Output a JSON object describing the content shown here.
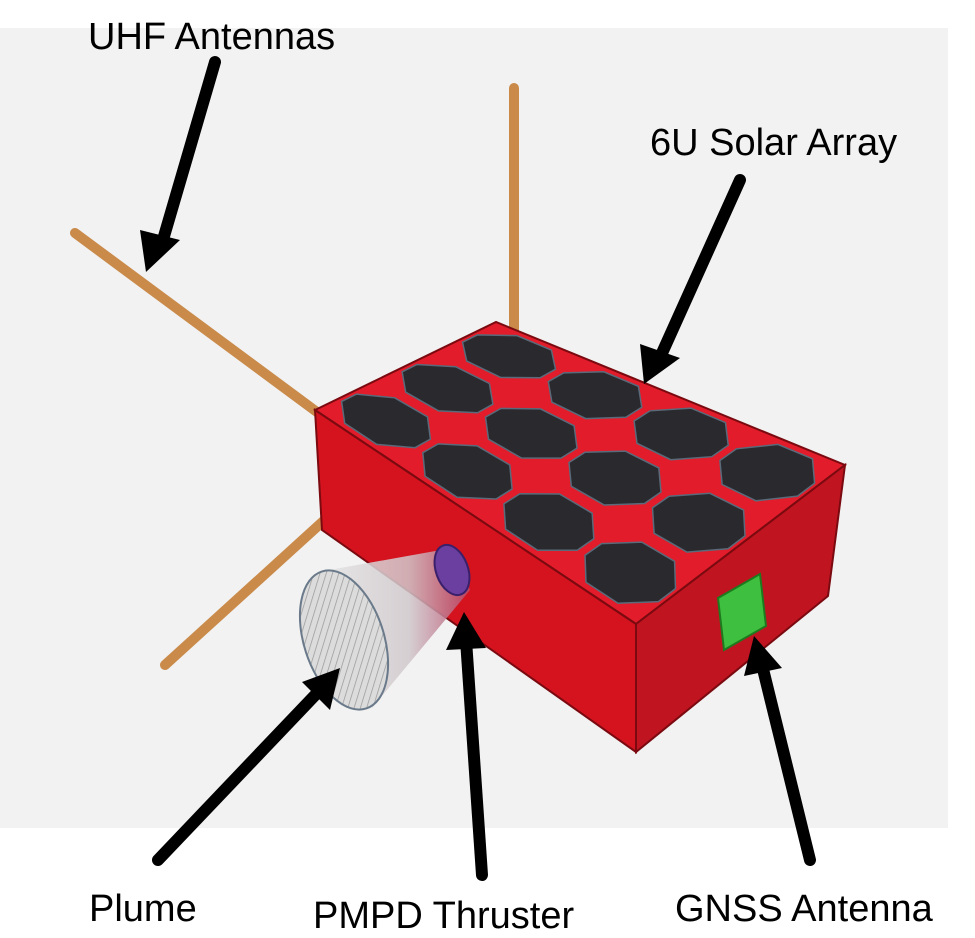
{
  "labels": {
    "uhf_antennas": "UHF Antennas",
    "solar_array": "6U Solar Array",
    "plume": "Plume",
    "pmpd_thruster": "PMPD Thruster",
    "gnss_antenna": "GNSS Antenna"
  },
  "colors": {
    "background_panel": "#f2f2f2",
    "body_top": "#e21c2a",
    "body_front": "#d4131f",
    "body_side": "#b80f1a",
    "solar_cell": "#2a2a2e",
    "solar_edge": "#5a6a7a",
    "antenna": "#c98a4a",
    "gnss_patch": "#3fbf3f",
    "thruster": "#6a3fa0",
    "plume_fill": "#d8d8d8",
    "arrow": "#000000"
  },
  "solar_grid": {
    "rows": 3,
    "cols": 4
  }
}
